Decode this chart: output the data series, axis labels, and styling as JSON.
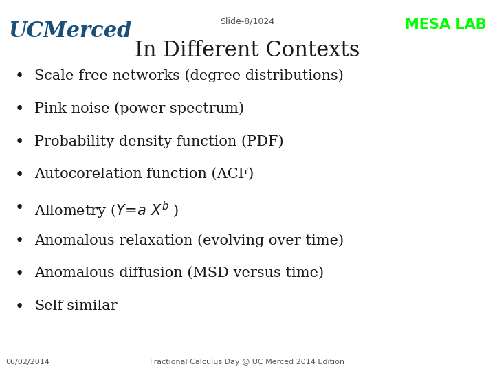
{
  "background_color": "#ffffff",
  "slide_label": "Slide-8/1024",
  "slide_label_color": "#555555",
  "slide_label_fontsize": 9,
  "mesa_lab_text": "MESA LAB",
  "mesa_lab_color": "#00ff00",
  "mesa_lab_fontsize": 15,
  "ucmerced_text": "UCMerced",
  "ucmerced_color": "#1a4f7a",
  "ucmerced_fontsize": 22,
  "title": "In Different Contexts",
  "title_fontsize": 22,
  "title_color": "#1a1a1a",
  "bullet_items": [
    "Scale-free networks (degree distributions)",
    "Pink noise (power spectrum)",
    "Probability density function (PDF)",
    "Autocorelation function (ACF)",
    "ALLOMETRY",
    "Anomalous relaxation (evolving over time)",
    "Anomalous diffusion (MSD versus time)",
    "Self-similar"
  ],
  "bullet_fontsize": 15,
  "bullet_color": "#1a1a1a",
  "bullet_symbol": "•",
  "footer_left": "06/02/2014",
  "footer_center": "Fractional Calculus Day @ UC Merced 2014 Edition",
  "footer_color": "#555555",
  "footer_fontsize": 8
}
